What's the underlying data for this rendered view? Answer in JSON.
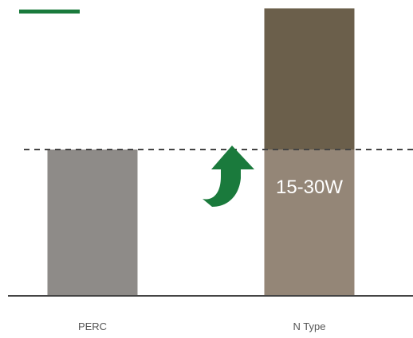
{
  "colors": {
    "accent": "#1a7a3c",
    "perc_bar": "#8e8b88",
    "ntype_base": "#948677",
    "ntype_gain": "#6b5f4b",
    "baseline": "#444444",
    "reference_line": "#444444",
    "label_text": "#555555",
    "gain_text": "#ffffff"
  },
  "icons": {
    "decoration": "green-bar-icon",
    "arrow": "upward-curved-arrow-icon"
  },
  "chart_data": {
    "type": "bar",
    "stacked": true,
    "categories": [
      "PERC",
      "N Type"
    ],
    "series": [
      {
        "values": [
          1,
          1
        ]
      },
      {
        "values": [
          0,
          0.97
        ]
      }
    ],
    "annotations": {
      "gain_label": "15-30W"
    },
    "reference_line": {
      "value": 1,
      "style": "dashed"
    },
    "ylim": [
      0,
      2.0
    ],
    "grid": false,
    "legend": "none",
    "xlabel": "",
    "ylabel": ""
  }
}
